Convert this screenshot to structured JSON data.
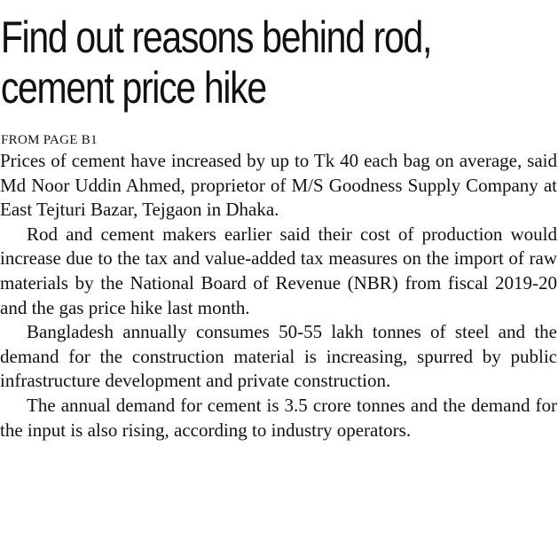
{
  "headline": {
    "line1": "Find out reasons behind rod,",
    "line2": "cement price hike"
  },
  "dateline": "FROM PAGE B1",
  "paragraphs": [
    "Prices of cement have increased by up to Tk 40 each bag on average, said Md Noor Uddin Ahmed, proprietor of M/S Goodness Supply Company at East Tejturi Bazar, Tejgaon in Dhaka.",
    "Rod and cement makers earlier said their cost of production would increase due to the tax and value-added tax measures on the import of raw materials by the National Board of Revenue (NBR) from fiscal 2019-20 and the gas price hike last month.",
    "Bangladesh annually consumes 50-55 lakh tonnes of steel and the demand for the construction material is increasing, spurred by public infrastructure development and private construction.",
    "The annual demand for cement is 3.5 crore tonnes and the demand for the input is also rising, according to industry operators."
  ]
}
